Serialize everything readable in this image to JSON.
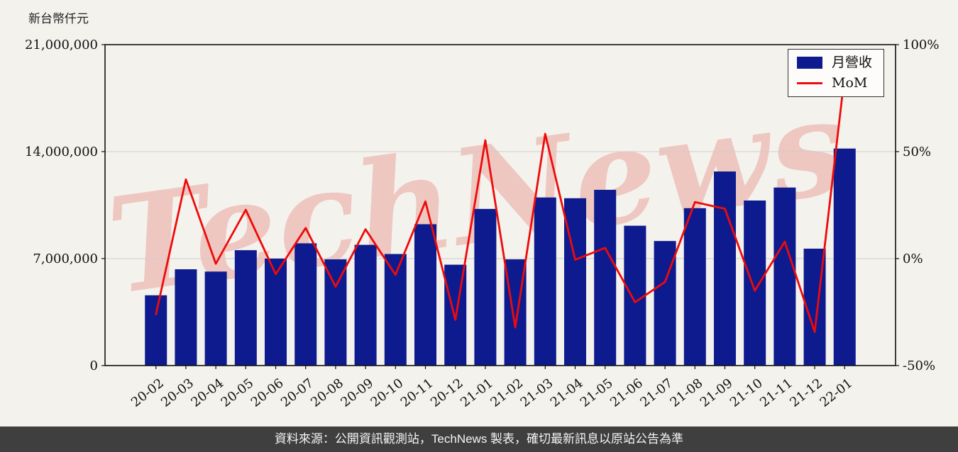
{
  "page": {
    "y_axis_unit_label": "新台幣仟元",
    "watermark_text": "TechNews",
    "footer_text": "資料來源：公開資訊觀測站，TechNews 製表，確切最新訊息以原站公告為準"
  },
  "legend": {
    "revenue_label": "月營收",
    "mom_label": "MoM"
  },
  "colors": {
    "bar": "#0d1b8e",
    "line": "#ef0a0a",
    "grid": "#cfcccc",
    "axis": "#111111",
    "page_bg": "#f4f2ed",
    "legend_bg": "#fdfcfa",
    "footer_bg": "#3f3f3f",
    "footer_text": "#f5f5f5",
    "watermark": "#dd4a42"
  },
  "chart_data": {
    "type": "bar",
    "title": "",
    "categories": [
      "20-02",
      "20-03",
      "20-04",
      "20-05",
      "20-06",
      "20-07",
      "20-08",
      "20-09",
      "20-10",
      "20-11",
      "20-12",
      "21-01",
      "21-02",
      "21-03",
      "21-04",
      "21-05",
      "21-06",
      "21-07",
      "21-08",
      "21-09",
      "21-10",
      "21-11",
      "21-12",
      "22-01"
    ],
    "series": [
      {
        "name": "月營收",
        "kind": "bar",
        "axis": "left",
        "unit": "新台幣仟元",
        "values": [
          4600000,
          6300000,
          6150000,
          7550000,
          7000000,
          8000000,
          6950000,
          7900000,
          7300000,
          9250000,
          6600000,
          10250000,
          6950000,
          11000000,
          10950000,
          11500000,
          9150000,
          8150000,
          10300000,
          12700000,
          10800000,
          11650000,
          7650000,
          14200000
        ]
      },
      {
        "name": "MoM",
        "kind": "line",
        "axis": "right",
        "unit": "%",
        "values": [
          -26.0,
          37.0,
          -2.4,
          22.8,
          -7.3,
          14.3,
          -13.1,
          13.7,
          -7.6,
          26.7,
          -28.6,
          55.3,
          -32.2,
          58.3,
          -0.5,
          5.0,
          -20.4,
          -10.9,
          26.4,
          23.3,
          -15.0,
          7.9,
          -34.3,
          85.6
        ]
      }
    ],
    "left_axis": {
      "range": [
        0,
        21000000
      ],
      "ticks": [
        0,
        7000000,
        14000000,
        21000000
      ],
      "tick_labels": [
        "0",
        "7,000,000",
        "14,000,000",
        "21,000,000"
      ]
    },
    "right_axis": {
      "range": [
        -50,
        100
      ],
      "ticks": [
        -50,
        0,
        50,
        100
      ],
      "tick_labels": [
        "-50%",
        "0%",
        "50%",
        "100%"
      ]
    },
    "legend_position": "top-right",
    "grid": "horizontal"
  }
}
